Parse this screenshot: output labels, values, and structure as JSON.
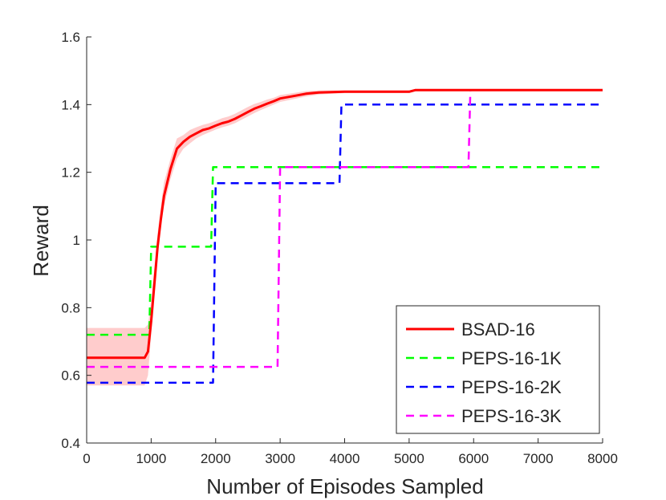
{
  "chart_data": {
    "type": "line",
    "title": "",
    "xlabel": "Number of Episodes Sampled",
    "ylabel": "Reward",
    "xlim": [
      0,
      8000
    ],
    "ylim": [
      0.4,
      1.6
    ],
    "xticks": [
      0,
      1000,
      2000,
      3000,
      4000,
      5000,
      6000,
      7000,
      8000
    ],
    "xtick_labels": [
      "0",
      "1000",
      "2000",
      "3000",
      "4000",
      "5000",
      "6000",
      "7000",
      "8000"
    ],
    "yticks": [
      0.4,
      0.6,
      0.8,
      1.0,
      1.2,
      1.4,
      1.6
    ],
    "ytick_labels": [
      "0.4",
      "0.6",
      "0.8",
      "1",
      "1.2",
      "1.4",
      "1.6"
    ],
    "grid": false,
    "legend_position": "bottom-right",
    "series": [
      {
        "name": "BSAD-16",
        "color": "#ff0000",
        "style": "solid",
        "x": [
          0,
          900,
          950,
          1000,
          1050,
          1100,
          1150,
          1200,
          1300,
          1400,
          1500,
          1600,
          1700,
          1800,
          1900,
          2000,
          2100,
          2200,
          2300,
          2400,
          2500,
          2600,
          2700,
          2800,
          2900,
          3000,
          3200,
          3400,
          3600,
          4000,
          4500,
          5000,
          5100,
          6000,
          8000
        ],
        "y": [
          0.652,
          0.652,
          0.67,
          0.76,
          0.87,
          0.98,
          1.06,
          1.13,
          1.21,
          1.27,
          1.29,
          1.305,
          1.315,
          1.325,
          1.33,
          1.338,
          1.345,
          1.35,
          1.358,
          1.368,
          1.378,
          1.388,
          1.395,
          1.403,
          1.41,
          1.418,
          1.425,
          1.432,
          1.436,
          1.438,
          1.438,
          1.438,
          1.443,
          1.443,
          1.443
        ],
        "band_low": [
          0.57,
          0.57,
          0.6,
          0.72,
          0.85,
          0.96,
          1.04,
          1.1,
          1.18,
          1.24,
          1.27,
          1.285,
          1.3,
          1.31,
          1.318,
          1.326,
          1.333,
          1.338,
          1.345,
          1.355,
          1.365,
          1.375,
          1.384,
          1.392,
          1.4,
          1.408,
          1.416,
          1.424,
          1.43,
          1.434,
          1.434,
          1.434,
          1.44,
          1.44,
          1.44
        ],
        "band_high": [
          0.74,
          0.74,
          0.75,
          0.82,
          0.92,
          1.02,
          1.1,
          1.17,
          1.24,
          1.3,
          1.31,
          1.325,
          1.333,
          1.34,
          1.345,
          1.352,
          1.36,
          1.365,
          1.373,
          1.383,
          1.393,
          1.402,
          1.408,
          1.415,
          1.42,
          1.428,
          1.434,
          1.44,
          1.442,
          1.442,
          1.442,
          1.442,
          1.446,
          1.446,
          1.446
        ]
      },
      {
        "name": "PEPS-16-1K",
        "color": "#00ff00",
        "style": "dashed",
        "x": [
          0,
          970,
          1000,
          1930,
          1960,
          8000
        ],
        "y": [
          0.72,
          0.72,
          0.98,
          0.98,
          1.215,
          1.215
        ]
      },
      {
        "name": "PEPS-16-2K",
        "color": "#0000ff",
        "style": "dashed",
        "x": [
          0,
          1960,
          2000,
          3920,
          3950,
          8000
        ],
        "y": [
          0.578,
          0.578,
          1.168,
          1.168,
          1.4,
          1.4
        ]
      },
      {
        "name": "PEPS-16-3K",
        "color": "#ff00ff",
        "style": "dashed",
        "x": [
          0,
          2960,
          3000,
          5920,
          5950,
          8000
        ],
        "y": [
          0.625,
          0.625,
          1.215,
          1.215,
          1.443,
          1.443
        ]
      }
    ]
  }
}
